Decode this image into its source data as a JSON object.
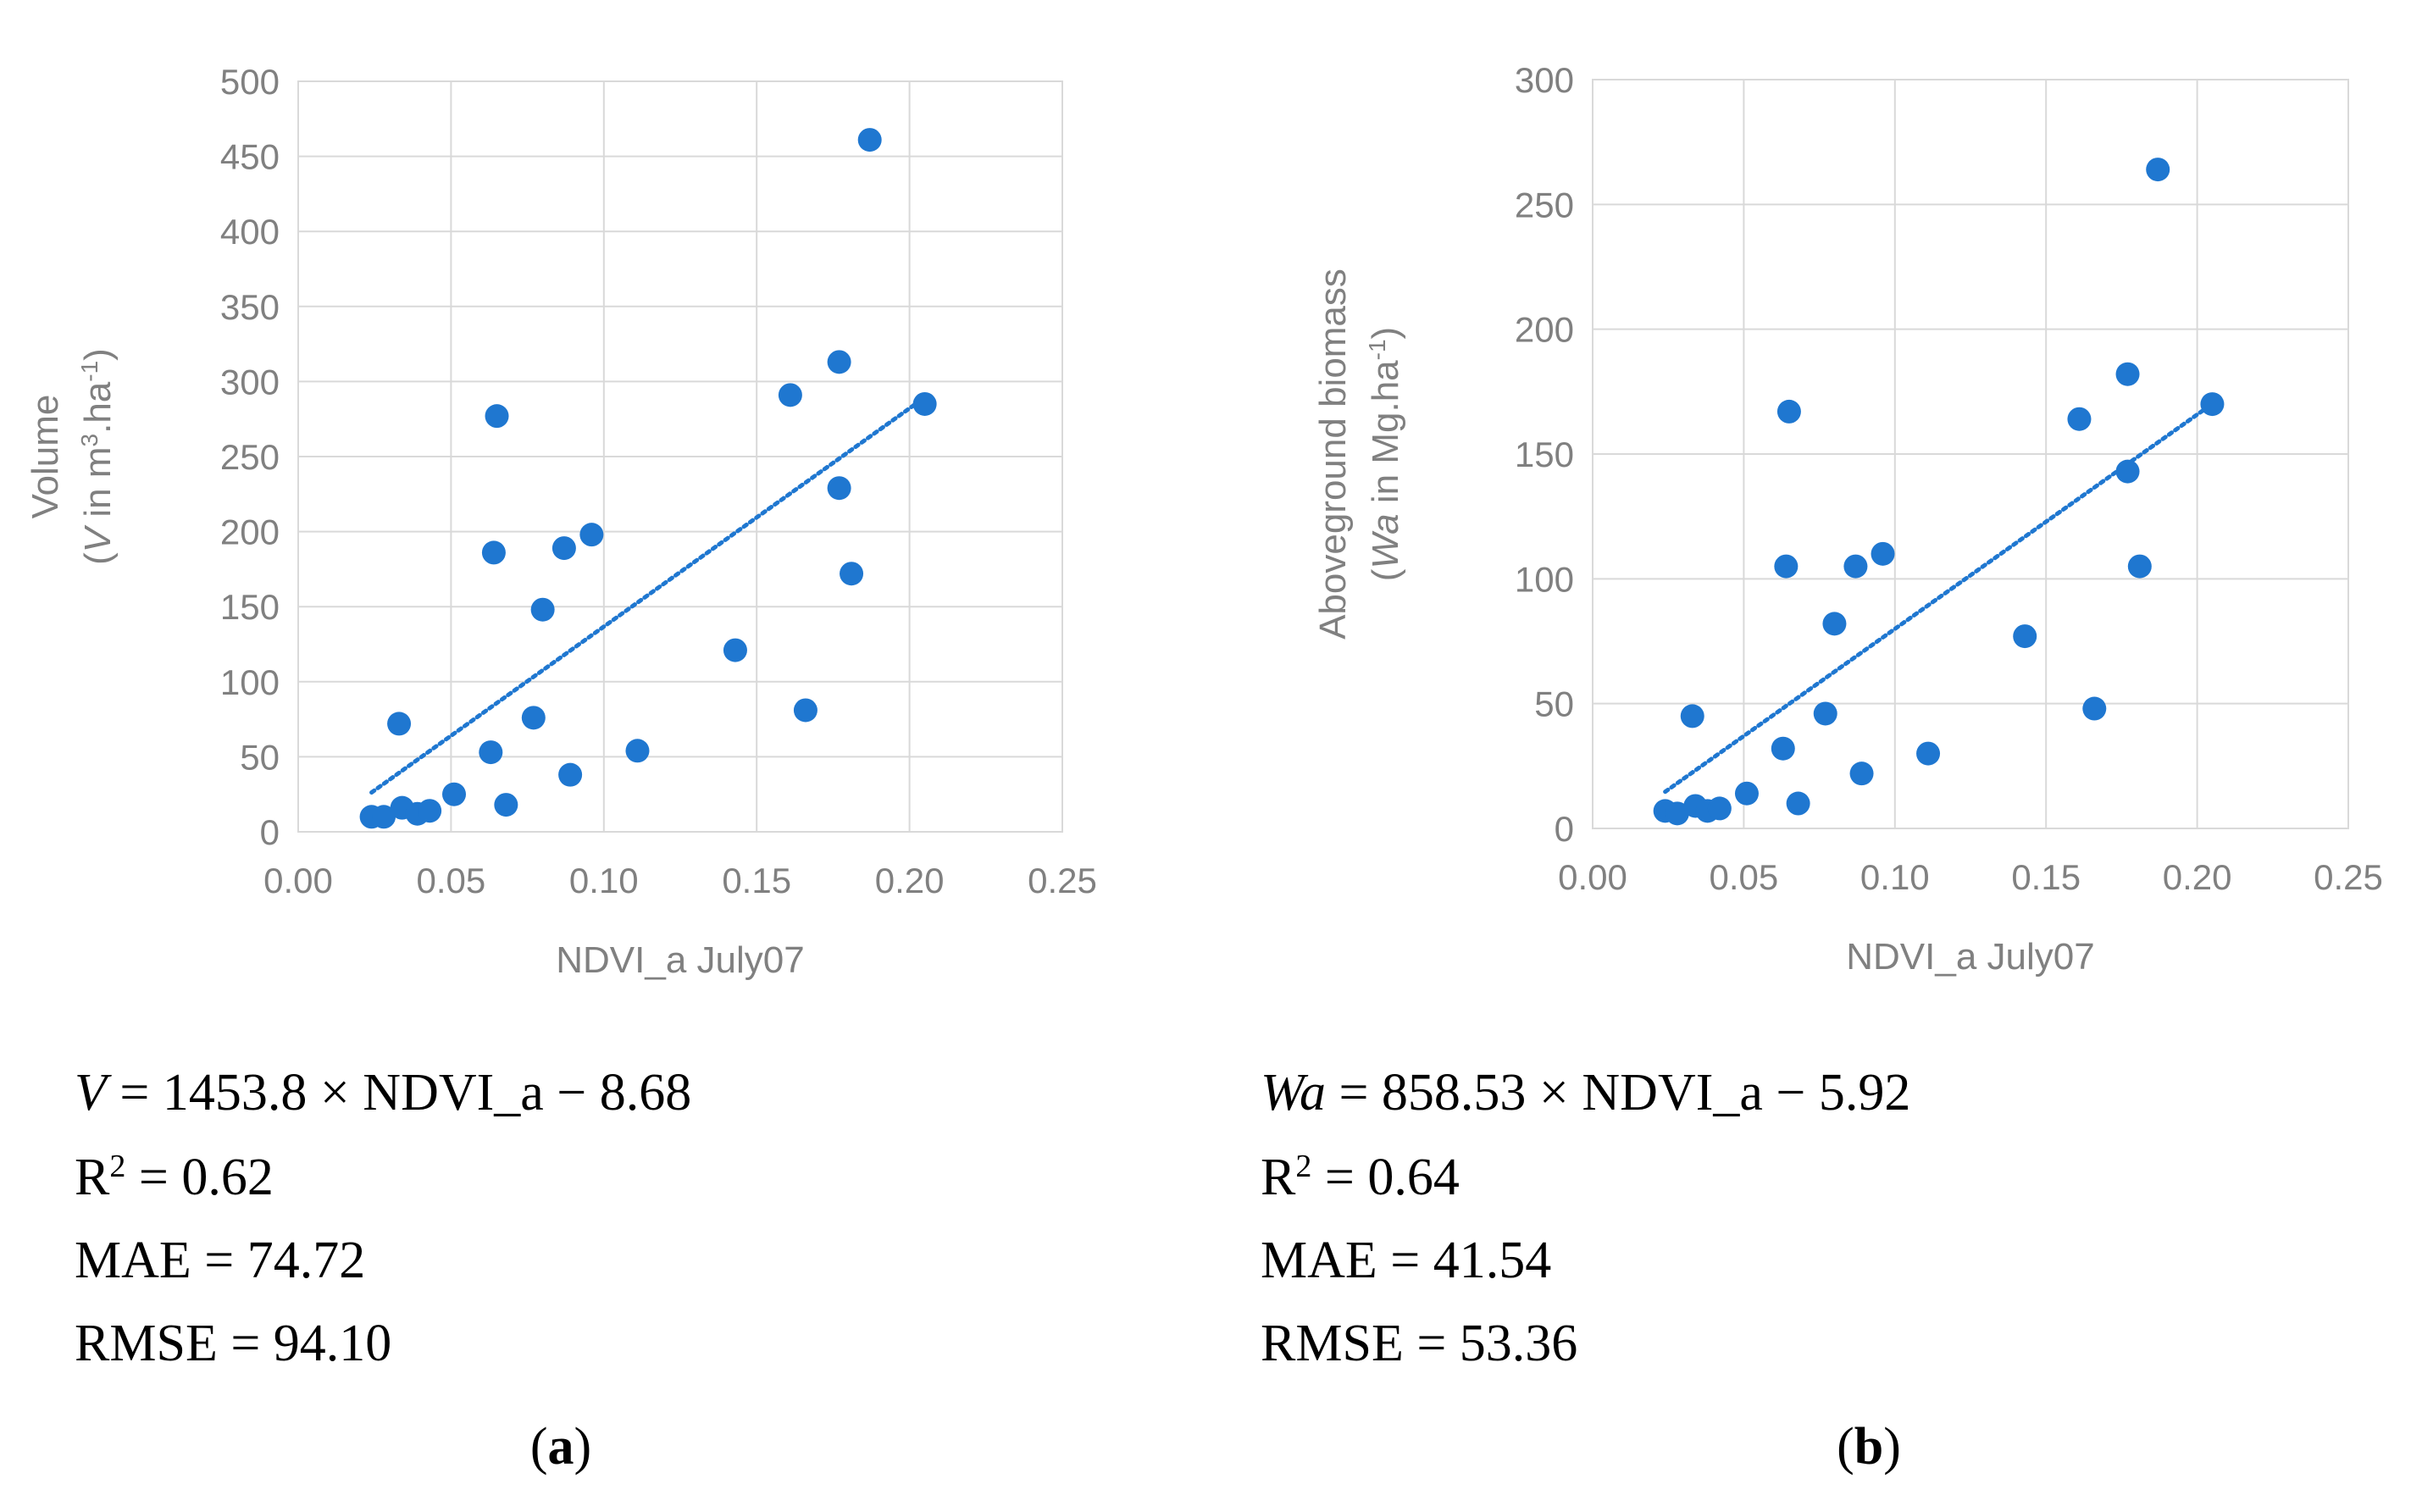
{
  "chart_data": [
    {
      "type": "scatter",
      "panel_label": "a",
      "xlabel": "NDVI_a July07",
      "ylabel_line1": "Volume",
      "ylabel_line2": {
        "open": "(",
        "var": "V",
        "mid": " in m",
        "sup": "3",
        "rest": ".ha",
        "sup2": "-1",
        "close": ")"
      },
      "xlim": [
        0,
        0.25
      ],
      "ylim": [
        0,
        500
      ],
      "x_ticks": [
        "0.00",
        "0.05",
        "0.10",
        "0.15",
        "0.20",
        "0.25"
      ],
      "y_ticks": [
        "0",
        "50",
        "100",
        "150",
        "200",
        "250",
        "300",
        "350",
        "400",
        "450",
        "500"
      ],
      "x_tick_values": [
        0,
        0.05,
        0.1,
        0.15,
        0.2,
        0.25
      ],
      "y_tick_values": [
        0,
        50,
        100,
        150,
        200,
        250,
        300,
        350,
        400,
        450,
        500
      ],
      "points": [
        [
          0.024,
          10
        ],
        [
          0.028,
          10
        ],
        [
          0.033,
          72
        ],
        [
          0.034,
          16
        ],
        [
          0.039,
          12
        ],
        [
          0.043,
          14
        ],
        [
          0.051,
          25
        ],
        [
          0.063,
          53
        ],
        [
          0.064,
          186
        ],
        [
          0.065,
          277
        ],
        [
          0.068,
          18
        ],
        [
          0.077,
          76
        ],
        [
          0.08,
          148
        ],
        [
          0.087,
          189
        ],
        [
          0.089,
          38
        ],
        [
          0.096,
          198
        ],
        [
          0.111,
          54
        ],
        [
          0.143,
          121
        ],
        [
          0.161,
          291
        ],
        [
          0.166,
          81
        ],
        [
          0.177,
          229
        ],
        [
          0.177,
          313
        ],
        [
          0.181,
          172
        ],
        [
          0.187,
          461
        ],
        [
          0.205,
          285
        ]
      ],
      "trend": {
        "x": [
          0.024,
          0.205
        ],
        "y": [
          26.2,
          289.4
        ]
      },
      "color": "#1f77d0",
      "equation": {
        "var": "V",
        "rhs": " = 1453.8 × NDVI_a − 8.68"
      },
      "r2": {
        "R": "R",
        "sup": "2",
        "rest": " = 0.62"
      },
      "mae": "MAE = 74.72",
      "rmse": "RMSE = 94.10"
    },
    {
      "type": "scatter",
      "panel_label": "b",
      "xlabel": "NDVI_a July07",
      "ylabel_line1": "Aboveground biomass",
      "ylabel_line2": {
        "open": "(",
        "var": "Wa",
        "mid": " in Mg.ha",
        "sup": "-1",
        "close": ")"
      },
      "xlim": [
        0,
        0.25
      ],
      "ylim": [
        0,
        300
      ],
      "x_ticks": [
        "0.00",
        "0.05",
        "0.10",
        "0.15",
        "0.20",
        "0.25"
      ],
      "y_ticks": [
        "0",
        "50",
        "100",
        "150",
        "200",
        "250",
        "300"
      ],
      "x_tick_values": [
        0,
        0.05,
        0.1,
        0.15,
        0.2,
        0.25
      ],
      "y_tick_values": [
        0,
        50,
        100,
        150,
        200,
        250,
        300
      ],
      "points": [
        [
          0.024,
          7
        ],
        [
          0.028,
          6
        ],
        [
          0.033,
          45
        ],
        [
          0.034,
          9
        ],
        [
          0.038,
          7
        ],
        [
          0.042,
          8
        ],
        [
          0.051,
          14
        ],
        [
          0.063,
          32
        ],
        [
          0.064,
          105
        ],
        [
          0.065,
          167
        ],
        [
          0.068,
          10
        ],
        [
          0.077,
          46
        ],
        [
          0.08,
          82
        ],
        [
          0.087,
          105
        ],
        [
          0.089,
          22
        ],
        [
          0.096,
          110
        ],
        [
          0.111,
          30
        ],
        [
          0.143,
          77
        ],
        [
          0.161,
          164
        ],
        [
          0.166,
          48
        ],
        [
          0.177,
          143
        ],
        [
          0.177,
          182
        ],
        [
          0.181,
          105
        ],
        [
          0.187,
          264
        ],
        [
          0.205,
          170
        ]
      ],
      "trend": {
        "x": [
          0.024,
          0.205
        ],
        "y": [
          14.7,
          170.1
        ]
      },
      "color": "#1f77d0",
      "equation": {
        "var": "Wa",
        "rhs": " = 858.53 × NDVI_a − 5.92"
      },
      "r2": {
        "R": "R",
        "sup": "2",
        "rest": " = 0.64"
      },
      "mae": "MAE = 41.54",
      "rmse": "RMSE = 53.36"
    }
  ]
}
